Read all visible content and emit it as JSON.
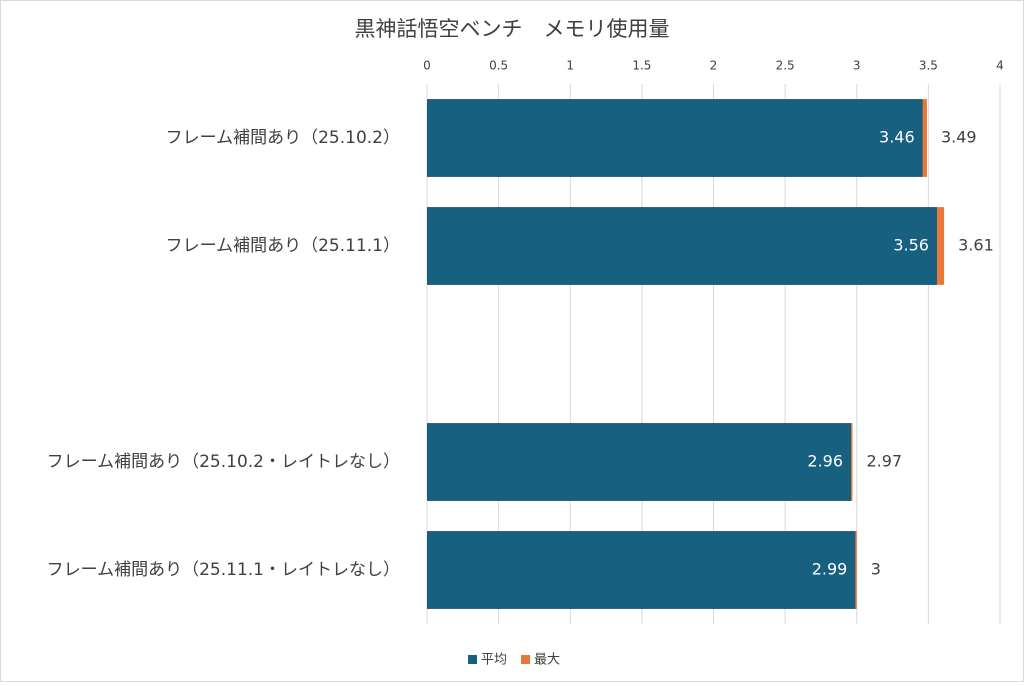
{
  "chart_data": {
    "type": "bar",
    "title": "黒神話悟空ベンチ　メモリ使用量",
    "categories": [
      "フレーム補間あり（25.10.2）",
      "フレーム補間あり（25.11.1）",
      null,
      "フレーム補間あり（25.10.2・レイトレなし）",
      "フレーム補間あり（25.11.1・レイトレなし）"
    ],
    "series": [
      {
        "name": "平均",
        "color": "#17607f",
        "values": [
          3.46,
          3.56,
          null,
          2.96,
          2.99
        ]
      },
      {
        "name": "最大",
        "color": "#e8773a",
        "values": [
          3.49,
          3.61,
          null,
          2.97,
          3
        ]
      }
    ],
    "xlim": [
      0,
      4
    ],
    "xticks": [
      0,
      0.5,
      1,
      1.5,
      2,
      2.5,
      3,
      3.5,
      4
    ],
    "grid": true
  }
}
